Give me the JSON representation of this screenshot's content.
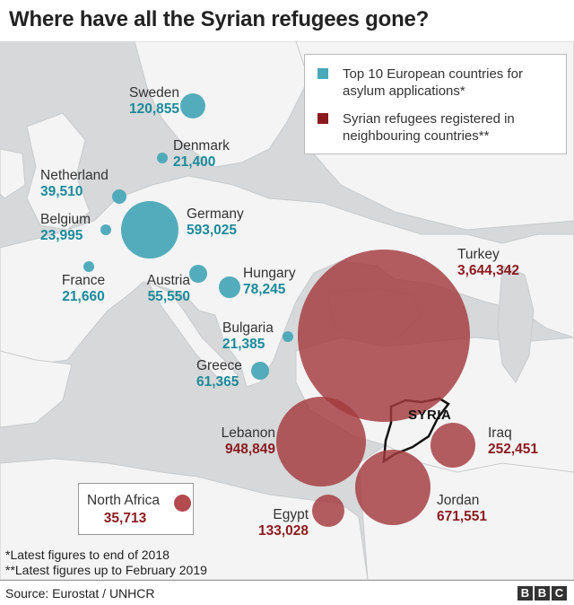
{
  "title": "Where have all the Syrian refugees gone?",
  "colors": {
    "europe_bubble": "#4aa8b8",
    "europe_value": "#1b8a9a",
    "neighbour_bubble": "#a33a3f",
    "neighbour_value": "#8b1a1f",
    "land": "#f4f4f4",
    "sea": "#d6d8d9"
  },
  "legend": {
    "europe": "Top 10 European countries for asylum applications*",
    "neighbours": "Syrian refugees registered in neighbouring countries**"
  },
  "europe": [
    {
      "id": "sweden",
      "name": "Sweden",
      "value": "120,855"
    },
    {
      "id": "denmark",
      "name": "Denmark",
      "value": "21,400"
    },
    {
      "id": "netherland",
      "name": "Netherland",
      "value": "39,510"
    },
    {
      "id": "belgium",
      "name": "Belgium",
      "value": "23,995"
    },
    {
      "id": "germany",
      "name": "Germany",
      "value": "593,025"
    },
    {
      "id": "france",
      "name": "France",
      "value": "21,660"
    },
    {
      "id": "austria",
      "name": "Austria",
      "value": "55,550"
    },
    {
      "id": "hungary",
      "name": "Hungary",
      "value": "78,245"
    },
    {
      "id": "bulgaria",
      "name": "Bulgaria",
      "value": "21,385"
    },
    {
      "id": "greece",
      "name": "Greece",
      "value": "61,365"
    }
  ],
  "neighbours": [
    {
      "id": "turkey",
      "name": "Turkey",
      "value": "3,644,342"
    },
    {
      "id": "lebanon",
      "name": "Lebanon",
      "value": "948,849"
    },
    {
      "id": "iraq",
      "name": "Iraq",
      "value": "252,451"
    },
    {
      "id": "jordan",
      "name": "Jordan",
      "value": "671,551"
    },
    {
      "id": "egypt",
      "name": "Egypt",
      "value": "133,028"
    }
  ],
  "north_africa": {
    "name": "North Africa",
    "value": "35,713"
  },
  "syria_label": "SYRIA",
  "notes": {
    "note1": "*Latest figures to end of 2018",
    "note2": "**Latest figures up to February 2019"
  },
  "footer": {
    "source": "Source: Eurostat / UNHCR",
    "brand": [
      "B",
      "B",
      "C"
    ]
  }
}
